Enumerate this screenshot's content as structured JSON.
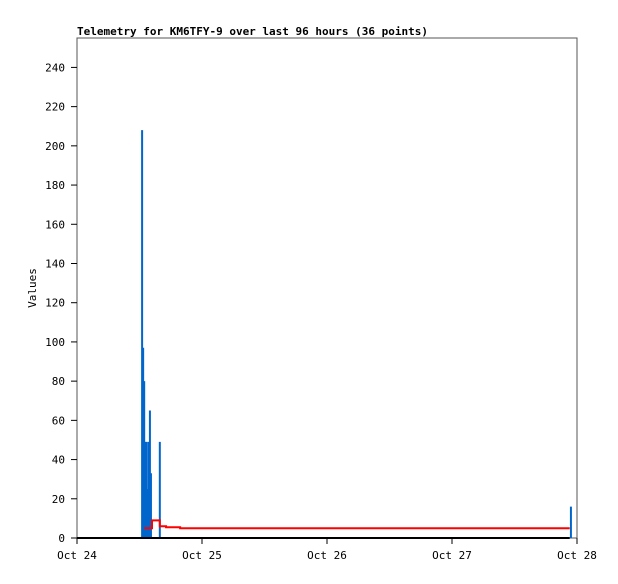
{
  "chart_data": {
    "type": "line",
    "title": "Telemetry for KM6TFY-9 over last 96 hours (36 points)",
    "xlabel": "",
    "ylabel": "Values",
    "ylim": [
      0,
      255
    ],
    "xlim": [
      "Oct 24 00:00",
      "Oct 28 00:00"
    ],
    "x_ticks": [
      "Oct 24",
      "Oct 25",
      "Oct 26",
      "Oct 27",
      "Oct 28"
    ],
    "y_ticks": [
      0,
      20,
      40,
      60,
      80,
      100,
      120,
      140,
      160,
      180,
      200,
      220,
      240
    ],
    "grid": false,
    "series": [
      {
        "style": "impulse",
        "color": "#0066cc",
        "points": [
          [
            "Oct 24 12:30",
            208
          ],
          [
            "Oct 24 12:42",
            97
          ],
          [
            "Oct 24 12:54",
            80
          ],
          [
            "Oct 24 13:06",
            49
          ],
          [
            "Oct 24 13:12",
            17
          ],
          [
            "Oct 24 13:24",
            49
          ],
          [
            "Oct 24 13:36",
            25
          ],
          [
            "Oct 24 13:48",
            49
          ],
          [
            "Oct 24 14:00",
            65
          ],
          [
            "Oct 24 14:12",
            33
          ],
          [
            "Oct 24 15:54",
            49
          ],
          [
            "Oct 27 22:50",
            16
          ]
        ]
      },
      {
        "style": "step",
        "color": "#ff0000",
        "points": [
          [
            "Oct 24 12:54",
            5
          ],
          [
            "Oct 24 14:24",
            9
          ],
          [
            "Oct 24 15:54",
            6
          ],
          [
            "Oct 24 17:06",
            5.5
          ],
          [
            "Oct 24 19:48",
            5
          ],
          [
            "Oct 27 22:36",
            5
          ]
        ]
      },
      {
        "style": "step",
        "color": "#000000",
        "points": [
          [
            "Oct 24 00:00",
            0
          ],
          [
            "Oct 27 22:36",
            0
          ]
        ]
      }
    ]
  }
}
